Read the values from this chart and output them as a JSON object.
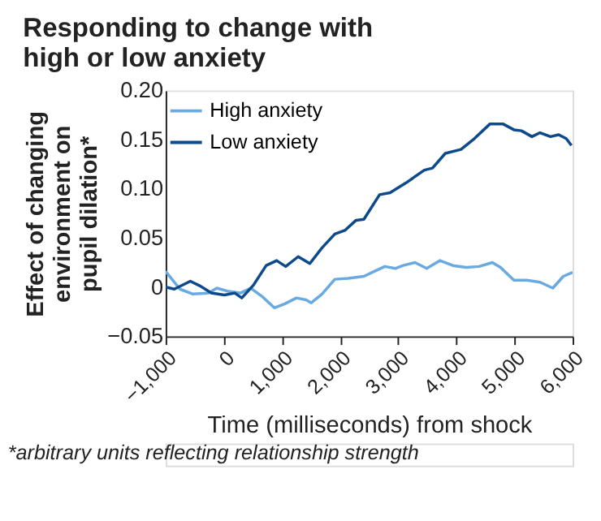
{
  "chart_data": {
    "type": "line",
    "title": "Responding to change with high or low anxiety",
    "xlabel": "Time (milliseconds) from shock",
    "ylabel": "Effect of changing environment on pupil dilation*",
    "annotations": [
      "*arbitrary units reflecting relationship strength"
    ],
    "series": [
      {
        "name": "High anxiety",
        "color": "#6aaae2",
        "x": [
          -1000,
          -755,
          -530,
          -260,
          -120,
          60,
          285,
          465,
          670,
          870,
          1050,
          1250,
          1415,
          1505,
          1690,
          1910,
          2140,
          2410,
          2590,
          2770,
          2950,
          3085,
          3290,
          3490,
          3720,
          3940,
          4170,
          4390,
          4620,
          4760,
          4990,
          5210,
          5440,
          5660,
          5840,
          6000
        ],
        "values": [
          0.016,
          -0.002,
          -0.007,
          -0.006,
          -0.001,
          -0.004,
          -0.006,
          -0.001,
          -0.01,
          -0.021,
          -0.017,
          -0.011,
          -0.013,
          -0.016,
          -0.007,
          0.008,
          0.009,
          0.011,
          0.016,
          0.021,
          0.019,
          0.022,
          0.025,
          0.019,
          0.027,
          0.022,
          0.02,
          0.021,
          0.025,
          0.02,
          0.007,
          0.007,
          0.005,
          -0.001,
          0.011,
          0.015
        ]
      },
      {
        "name": "Low anxiety",
        "color": "#0d4a8c",
        "x": [
          -1000,
          -850,
          -575,
          -400,
          -215,
          10,
          190,
          310,
          510,
          730,
          910,
          1065,
          1280,
          1480,
          1690,
          1910,
          2090,
          2275,
          2410,
          2680,
          2860,
          3135,
          3450,
          3590,
          3810,
          4080,
          4310,
          4580,
          4800,
          4990,
          5120,
          5300,
          5440,
          5620,
          5760,
          5890,
          5980
        ],
        "values": [
          0,
          -0.002,
          0.006,
          0.001,
          -0.006,
          -0.008,
          -0.006,
          -0.011,
          0.002,
          0.022,
          0.027,
          0.021,
          0.031,
          0.024,
          0.04,
          0.054,
          0.058,
          0.068,
          0.069,
          0.094,
          0.096,
          0.106,
          0.119,
          0.121,
          0.136,
          0.14,
          0.151,
          0.166,
          0.166,
          0.16,
          0.159,
          0.153,
          0.157,
          0.153,
          0.155,
          0.151,
          0.144
        ]
      }
    ],
    "xlim": [
      -1000,
      6000
    ],
    "xticks": [
      {
        "value": -1000,
        "label": "−1,000"
      },
      0,
      {
        "value": 1000,
        "label": "1,000"
      },
      {
        "value": 2000,
        "label": "2,000"
      },
      {
        "value": 3000,
        "label": "3,000"
      },
      {
        "value": 4000,
        "label": "4,000"
      },
      {
        "value": 5000,
        "label": "5,000"
      },
      {
        "value": 6000,
        "label": "6,000"
      }
    ],
    "ylim": [
      -0.05,
      0.2
    ],
    "yticks": [
      {
        "value": -0.05,
        "label": "−0.05"
      },
      0,
      {
        "value": 0.05,
        "label": "0.05"
      },
      {
        "value": 0.1,
        "label": "0.10"
      },
      {
        "value": 0.15,
        "label": "0.15"
      },
      {
        "value": 0.2,
        "label": "0.20"
      }
    ],
    "grid": false,
    "legend": "top left",
    "marker": "none",
    "line_style": "solid"
  }
}
